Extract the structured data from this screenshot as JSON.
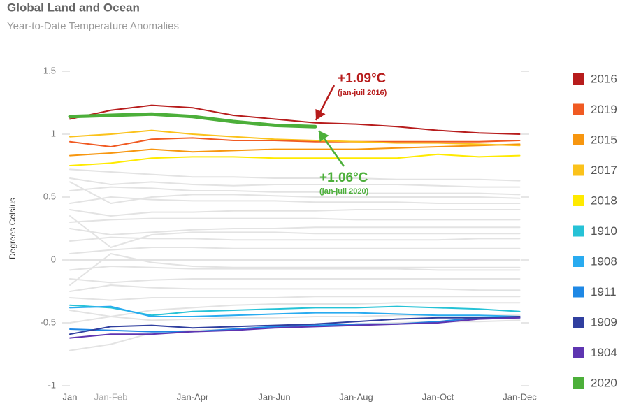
{
  "chart_data": {
    "type": "line",
    "title": "Global Land and Ocean",
    "subtitle": "Year-to-Date Temperature Anomalies",
    "y_label": "Degrees Celsius",
    "categories": [
      "Jan",
      "Jan-Feb",
      null,
      "Jan-Apr",
      null,
      "Jan-Jun",
      null,
      "Jan-Aug",
      null,
      "Jan-Oct",
      null,
      "Jan-Dec"
    ],
    "ylim": [
      -1,
      1.5
    ],
    "yticks": [
      -1,
      -0.5,
      0,
      0.5,
      1,
      1.5
    ],
    "grid": false,
    "legend": "right",
    "background_color": "#e3e3e3",
    "background_values": [
      [
        0.72,
        0.7,
        0.68,
        0.66,
        0.66,
        0.65,
        0.65,
        0.65,
        0.64,
        0.64,
        0.64,
        0.63
      ],
      [
        0.65,
        0.6,
        0.62,
        0.6,
        0.59,
        0.6,
        0.6,
        0.6,
        0.6,
        0.59,
        0.58,
        0.58
      ],
      [
        0.55,
        0.58,
        0.57,
        0.55,
        0.55,
        0.54,
        0.54,
        0.53,
        0.53,
        0.53,
        0.53,
        0.52
      ],
      [
        0.45,
        0.5,
        0.48,
        0.47,
        0.47,
        0.47,
        0.46,
        0.46,
        0.46,
        0.45,
        0.45,
        0.45
      ],
      [
        0.4,
        0.35,
        0.38,
        0.38,
        0.39,
        0.39,
        0.39,
        0.4,
        0.4,
        0.4,
        0.4,
        0.4
      ],
      [
        0.3,
        0.32,
        0.33,
        0.33,
        0.33,
        0.33,
        0.33,
        0.32,
        0.32,
        0.32,
        0.32,
        0.32
      ],
      [
        0.25,
        0.2,
        0.22,
        0.24,
        0.25,
        0.25,
        0.26,
        0.26,
        0.26,
        0.26,
        0.26,
        0.26
      ],
      [
        0.15,
        0.18,
        0.17,
        0.17,
        0.16,
        0.16,
        0.16,
        0.16,
        0.16,
        0.16,
        0.17,
        0.17
      ],
      [
        0.05,
        0.08,
        0.1,
        0.1,
        0.09,
        0.09,
        0.09,
        0.09,
        0.09,
        0.09,
        0.09,
        0.09
      ],
      [
        0,
        0,
        0,
        0,
        0,
        0,
        0,
        0,
        0,
        0,
        0,
        0
      ],
      [
        -0.08,
        -0.05,
        -0.06,
        -0.07,
        -0.07,
        -0.07,
        -0.07,
        -0.07,
        -0.07,
        -0.08,
        -0.08,
        -0.08
      ],
      [
        -0.15,
        -0.18,
        -0.16,
        -0.15,
        -0.15,
        -0.15,
        -0.15,
        -0.15,
        -0.15,
        -0.15,
        -0.15,
        -0.15
      ],
      [
        -0.25,
        -0.2,
        -0.22,
        -0.23,
        -0.23,
        -0.23,
        -0.23,
        -0.23,
        -0.23,
        -0.23,
        -0.24,
        -0.24
      ],
      [
        -0.3,
        -0.32,
        -0.3,
        -0.3,
        -0.3,
        -0.3,
        -0.29,
        -0.29,
        -0.29,
        -0.29,
        -0.29,
        -0.29
      ],
      [
        -0.4,
        -0.45,
        -0.4,
        -0.38,
        -0.36,
        -0.35,
        -0.35,
        -0.35,
        -0.34,
        -0.34,
        -0.34,
        -0.34
      ],
      [
        -0.5,
        -0.45,
        -0.48,
        -0.47,
        -0.46,
        -0.46,
        -0.45,
        -0.45,
        -0.44,
        -0.44,
        -0.44,
        -0.44
      ],
      [
        -0.72,
        -0.67,
        -0.58,
        -0.56,
        -0.55,
        -0.53,
        -0.52,
        -0.51,
        -0.5,
        -0.49,
        -0.49,
        -0.48
      ],
      [
        0.62,
        0.45,
        0.5,
        0.52,
        0.52,
        0.51,
        0.5,
        0.5,
        0.5,
        0.5,
        0.5,
        0.49
      ],
      [
        -0.2,
        0.05,
        -0.02,
        -0.05,
        -0.06,
        -0.06,
        -0.06,
        -0.06,
        -0.06,
        -0.06,
        -0.06,
        -0.06
      ],
      [
        0.35,
        0.1,
        0.2,
        0.22,
        0.22,
        0.22,
        0.21,
        0.21,
        0.21,
        0.21,
        0.21,
        0.21
      ]
    ],
    "series": [
      {
        "name": "2016",
        "color": "#b71c1c",
        "values": [
          1.12,
          1.19,
          1.23,
          1.21,
          1.15,
          1.12,
          1.09,
          1.08,
          1.06,
          1.03,
          1.01,
          1.0
        ]
      },
      {
        "name": "2019",
        "color": "#f05a22",
        "values": [
          0.94,
          0.9,
          0.96,
          0.97,
          0.95,
          0.95,
          0.94,
          0.94,
          0.94,
          0.94,
          0.94,
          0.95
        ]
      },
      {
        "name": "2015",
        "color": "#f7960f",
        "values": [
          0.83,
          0.85,
          0.88,
          0.86,
          0.87,
          0.88,
          0.88,
          0.88,
          0.89,
          0.9,
          0.91,
          0.92
        ]
      },
      {
        "name": "2017",
        "color": "#fbc21b",
        "values": [
          0.98,
          1.0,
          1.03,
          1.0,
          0.98,
          0.96,
          0.95,
          0.94,
          0.93,
          0.93,
          0.92,
          0.91
        ]
      },
      {
        "name": "2018",
        "color": "#ffea00",
        "values": [
          0.75,
          0.77,
          0.81,
          0.82,
          0.82,
          0.81,
          0.81,
          0.81,
          0.81,
          0.84,
          0.82,
          0.83
        ]
      },
      {
        "name": "1910",
        "color": "#26c2d6",
        "values": [
          -0.36,
          -0.38,
          -0.44,
          -0.41,
          -0.4,
          -0.39,
          -0.38,
          -0.38,
          -0.37,
          -0.38,
          -0.39,
          -0.41
        ]
      },
      {
        "name": "1908",
        "color": "#29abf0",
        "values": [
          -0.38,
          -0.37,
          -0.45,
          -0.45,
          -0.44,
          -0.43,
          -0.42,
          -0.42,
          -0.43,
          -0.44,
          -0.44,
          -0.45
        ]
      },
      {
        "name": "1911",
        "color": "#1e88e5",
        "values": [
          -0.55,
          -0.56,
          -0.57,
          -0.57,
          -0.55,
          -0.53,
          -0.52,
          -0.51,
          -0.51,
          -0.49,
          -0.46,
          -0.46
        ]
      },
      {
        "name": "1909",
        "color": "#303f9f",
        "values": [
          -0.59,
          -0.53,
          -0.52,
          -0.54,
          -0.53,
          -0.52,
          -0.51,
          -0.49,
          -0.47,
          -0.46,
          -0.46,
          -0.45
        ]
      },
      {
        "name": "1904",
        "color": "#5e35b1",
        "values": [
          -0.62,
          -0.59,
          -0.59,
          -0.57,
          -0.56,
          -0.54,
          -0.53,
          -0.52,
          -0.51,
          -0.5,
          -0.47,
          -0.46
        ]
      },
      {
        "name": "2020",
        "color": "#4caf3a",
        "width": 5,
        "values": [
          1.14,
          1.15,
          1.16,
          1.14,
          1.1,
          1.07,
          1.06,
          null,
          null,
          null,
          null,
          null
        ]
      }
    ],
    "annotations": [
      {
        "text": "+1.09°C",
        "note": "(jan-juil 2016)",
        "color": "#b71c1c"
      },
      {
        "text": "+1.06°C",
        "note": "(jan-juil 2020)",
        "color": "#4caf3a"
      }
    ]
  }
}
